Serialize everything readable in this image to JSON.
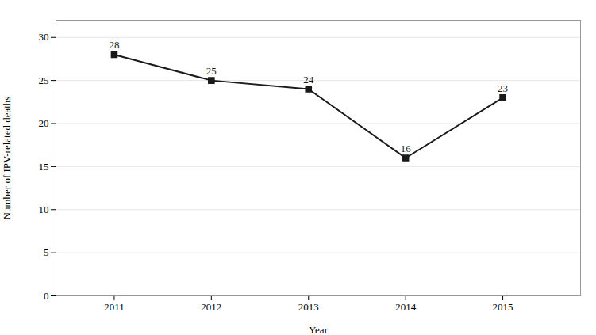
{
  "chart_data": {
    "type": "line",
    "x": [
      2011,
      2012,
      2013,
      2014,
      2015
    ],
    "values": [
      28,
      25,
      24,
      16,
      23
    ],
    "xlabel": "Year",
    "ylabel": "Number of IPV-related deaths",
    "xlim": [
      2010.4,
      2015.8
    ],
    "xticks": [
      2011,
      2012,
      2013,
      2014,
      2015
    ],
    "ylim": [
      0,
      32
    ],
    "yticks": [
      0,
      5,
      10,
      15,
      20,
      25,
      30
    ],
    "color": "#1a1a1a",
    "marker": "square",
    "grid": "y",
    "data_labels": true
  }
}
